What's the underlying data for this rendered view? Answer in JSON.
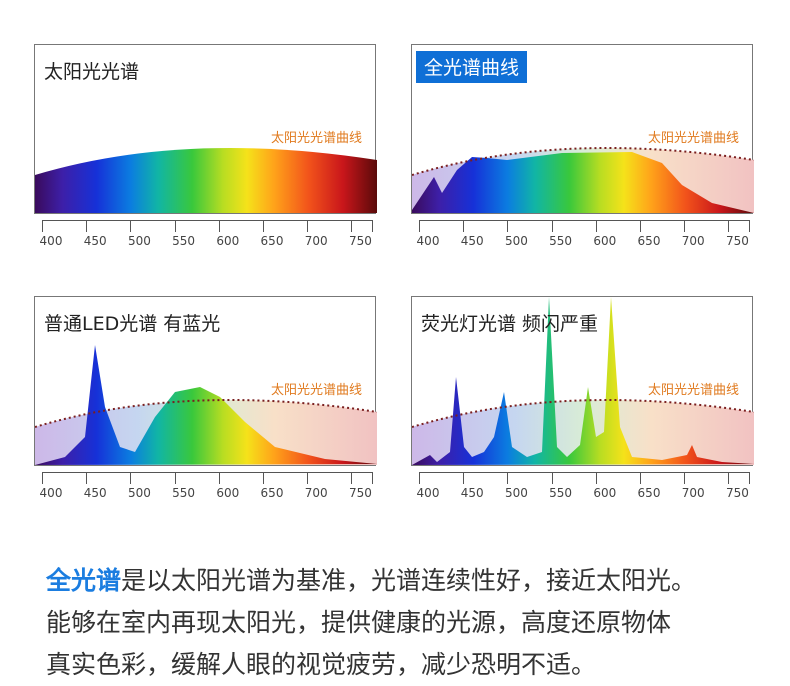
{
  "panels": [
    {
      "title": "太阳光光谱",
      "sun_label": "太阳光光谱曲线"
    },
    {
      "title": "全光谱曲线",
      "sun_label": "太阳光光谱曲线"
    },
    {
      "title": "普通LED光谱 有蓝光",
      "sun_label": "太阳光光谱曲线"
    },
    {
      "title": "荧光灯光谱 频闪严重",
      "sun_label": "太阳光光谱曲线"
    }
  ],
  "axis_ticks": [
    "400",
    "450",
    "500",
    "550",
    "600",
    "650",
    "700",
    "750"
  ],
  "description": {
    "highlight": "全光谱",
    "line1_rest": "是以太阳光谱为基准，光谱连续性好，接近太阳光。",
    "line2": "能够在室内再现太阳光，提供健康的光源，高度还原物体",
    "line3": "真实色彩，缓解人眼的视觉疲劳，减少恐明不适。"
  },
  "colors": {
    "accent": "#0f6fd6",
    "sun_curve_label": "#e07a1e"
  }
}
